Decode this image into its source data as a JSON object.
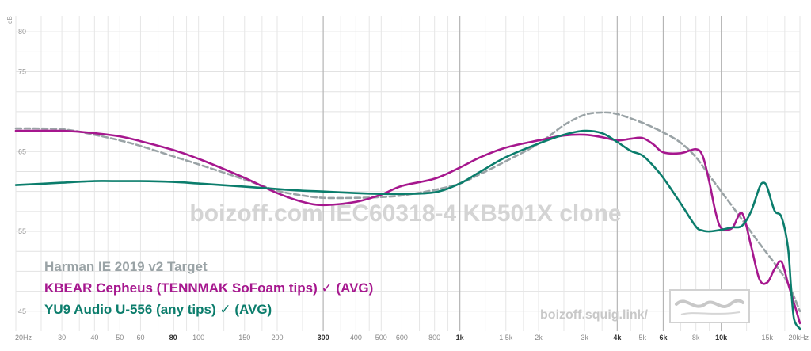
{
  "chart_data": {
    "type": "line",
    "ylabel": "dB",
    "xlabel": "",
    "xscale": "log",
    "xlim": [
      20,
      20000
    ],
    "ylim": [
      42.5,
      82
    ],
    "grid": true,
    "legend_position": "bottom-left",
    "watermark": "boizoff.com IEC60318-4 KB501X clone",
    "site_url": "boizoff.squig.link/",
    "yticks": [
      {
        "value": 80,
        "label": "80"
      },
      {
        "value": 75,
        "label": "75"
      },
      {
        "value": 65,
        "label": "65"
      },
      {
        "value": 55,
        "label": "55"
      },
      {
        "value": 45,
        "label": "45"
      }
    ],
    "xticks": [
      {
        "value": 20,
        "label": "20Hz",
        "major": false
      },
      {
        "value": 30,
        "label": "30",
        "major": false
      },
      {
        "value": 40,
        "label": "40",
        "major": false
      },
      {
        "value": 50,
        "label": "50",
        "major": false
      },
      {
        "value": 60,
        "label": "60",
        "major": false
      },
      {
        "value": 80,
        "label": "80",
        "major": true
      },
      {
        "value": 100,
        "label": "100",
        "major": false
      },
      {
        "value": 150,
        "label": "150",
        "major": false
      },
      {
        "value": 200,
        "label": "200",
        "major": false
      },
      {
        "value": 300,
        "label": "300",
        "major": true
      },
      {
        "value": 400,
        "label": "400",
        "major": false
      },
      {
        "value": 500,
        "label": "500",
        "major": false
      },
      {
        "value": 600,
        "label": "600",
        "major": false
      },
      {
        "value": 800,
        "label": "800",
        "major": false
      },
      {
        "value": 1000,
        "label": "1k",
        "major": true
      },
      {
        "value": 1500,
        "label": "1.5k",
        "major": false
      },
      {
        "value": 2000,
        "label": "2k",
        "major": false
      },
      {
        "value": 3000,
        "label": "3k",
        "major": false
      },
      {
        "value": 4000,
        "label": "4k",
        "major": true
      },
      {
        "value": 5000,
        "label": "5k",
        "major": false
      },
      {
        "value": 6000,
        "label": "6k",
        "major": true
      },
      {
        "value": 8000,
        "label": "8k",
        "major": false
      },
      {
        "value": 10000,
        "label": "10k",
        "major": true
      },
      {
        "value": 15000,
        "label": "15k",
        "major": false
      },
      {
        "value": 20000,
        "label": "20kHz",
        "major": false
      }
    ],
    "minor_grid_x": [
      25,
      35,
      45,
      70,
      90,
      125,
      175,
      250,
      350,
      450,
      700,
      900,
      1250,
      1750,
      2500,
      3500,
      4500,
      7000,
      9000,
      12500,
      17500
    ],
    "series": [
      {
        "name": "Harman IE 2019 v2 Target",
        "color": "#9aa3a6",
        "dashed": true,
        "points": [
          [
            20,
            67.9
          ],
          [
            30,
            67.8
          ],
          [
            40,
            67.1
          ],
          [
            50,
            66.4
          ],
          [
            60,
            65.7
          ],
          [
            80,
            64.4
          ],
          [
            100,
            63.4
          ],
          [
            150,
            61.5
          ],
          [
            200,
            60.1
          ],
          [
            250,
            59.5
          ],
          [
            300,
            59.2
          ],
          [
            400,
            59.2
          ],
          [
            500,
            59.3
          ],
          [
            600,
            59.5
          ],
          [
            800,
            60.2
          ],
          [
            1000,
            61
          ],
          [
            1200,
            62.2
          ],
          [
            1500,
            63.8
          ],
          [
            2000,
            66
          ],
          [
            2500,
            68.3
          ],
          [
            3000,
            69.6
          ],
          [
            3500,
            69.9
          ],
          [
            4000,
            69.7
          ],
          [
            5000,
            68.6
          ],
          [
            6000,
            67.4
          ],
          [
            7000,
            66.1
          ],
          [
            8000,
            64.3
          ],
          [
            9000,
            62
          ],
          [
            10000,
            60
          ],
          [
            12000,
            56.5
          ],
          [
            14000,
            53.5
          ],
          [
            16000,
            51
          ],
          [
            18000,
            48.5
          ],
          [
            20000,
            45
          ]
        ]
      },
      {
        "name": "KBEAR Cepheus (TENNMAK SoFoam tips) ✓ (AVG)",
        "color": "#a6178e",
        "dashed": false,
        "points": [
          [
            20,
            67.6
          ],
          [
            30,
            67.6
          ],
          [
            40,
            67.3
          ],
          [
            50,
            66.9
          ],
          [
            60,
            66.3
          ],
          [
            80,
            65.2
          ],
          [
            100,
            64.1
          ],
          [
            150,
            61.7
          ],
          [
            200,
            59.8
          ],
          [
            250,
            58.7
          ],
          [
            300,
            58.3
          ],
          [
            400,
            58.7
          ],
          [
            500,
            59.6
          ],
          [
            600,
            60.7
          ],
          [
            800,
            61.6
          ],
          [
            1000,
            63
          ],
          [
            1200,
            64.3
          ],
          [
            1500,
            65.5
          ],
          [
            2000,
            66.4
          ],
          [
            2500,
            67
          ],
          [
            3000,
            67.1
          ],
          [
            3500,
            66.8
          ],
          [
            4000,
            66.4
          ],
          [
            4500,
            66.6
          ],
          [
            5000,
            66.7
          ],
          [
            5500,
            65.9
          ],
          [
            6000,
            64.9
          ],
          [
            7000,
            64.8
          ],
          [
            8000,
            65.3
          ],
          [
            8500,
            64.4
          ],
          [
            9000,
            61.2
          ],
          [
            9500,
            57.5
          ],
          [
            10000,
            55.4
          ],
          [
            11000,
            55.4
          ],
          [
            12000,
            57.3
          ],
          [
            13000,
            53.2
          ],
          [
            14000,
            49
          ],
          [
            15000,
            48.6
          ],
          [
            16000,
            50.3
          ],
          [
            17000,
            51.2
          ],
          [
            18000,
            48.5
          ],
          [
            19000,
            46
          ],
          [
            20000,
            43.5
          ]
        ]
      },
      {
        "name": "YU9 Audio U-556 (any tips) ✓ (AVG)",
        "color": "#0b7d6c",
        "dashed": false,
        "points": [
          [
            20,
            60.8
          ],
          [
            30,
            61.1
          ],
          [
            40,
            61.3
          ],
          [
            50,
            61.3
          ],
          [
            60,
            61.3
          ],
          [
            80,
            61.2
          ],
          [
            100,
            61
          ],
          [
            150,
            60.6
          ],
          [
            200,
            60.3
          ],
          [
            250,
            60.1
          ],
          [
            300,
            60
          ],
          [
            400,
            59.8
          ],
          [
            500,
            59.7
          ],
          [
            600,
            59.7
          ],
          [
            800,
            59.9
          ],
          [
            1000,
            61
          ],
          [
            1200,
            62.5
          ],
          [
            1500,
            64.3
          ],
          [
            2000,
            66
          ],
          [
            2500,
            67.1
          ],
          [
            3000,
            67.6
          ],
          [
            3500,
            67.3
          ],
          [
            4000,
            66.2
          ],
          [
            4500,
            65.1
          ],
          [
            5000,
            64.5
          ],
          [
            5500,
            63.2
          ],
          [
            6000,
            61.7
          ],
          [
            7000,
            58.5
          ],
          [
            8000,
            55.6
          ],
          [
            8500,
            55.1
          ],
          [
            9000,
            55
          ],
          [
            10000,
            55.2
          ],
          [
            11000,
            55.5
          ],
          [
            12000,
            55.7
          ],
          [
            13000,
            57.5
          ],
          [
            14000,
            60.5
          ],
          [
            14500,
            61.1
          ],
          [
            15000,
            60.5
          ],
          [
            16000,
            57.6
          ],
          [
            17000,
            56.8
          ],
          [
            18000,
            53
          ],
          [
            18500,
            48
          ],
          [
            19000,
            44
          ],
          [
            20000,
            42.8
          ]
        ]
      }
    ]
  }
}
